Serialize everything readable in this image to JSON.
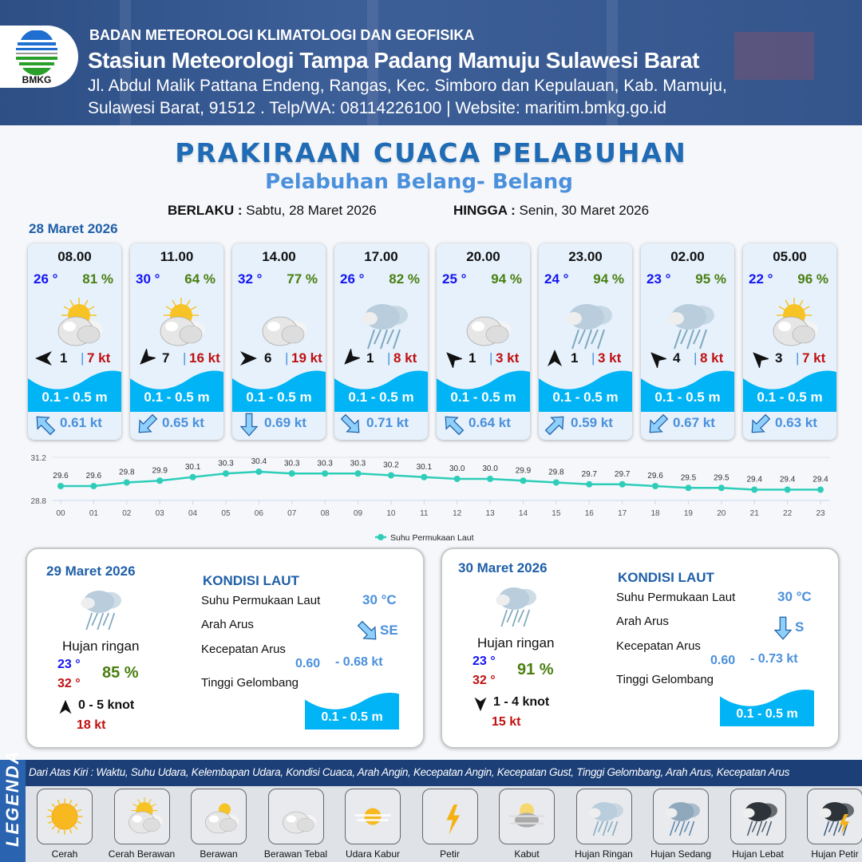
{
  "header": {
    "logo_text": "BMKG",
    "agency": "BADAN METEOROLOGI KLIMATOLOGI DAN GEOFISIKA",
    "station": "Stasiun Meteorologi Tampa Padang Mamuju Sulawesi Barat",
    "address_line1": "Jl. Abdul Malik Pattana Endeng, Rangas, Kec. Simboro dan Kepulauan, Kab. Mamuju,",
    "address_line2": "Sulawesi Barat, 91512 . Telp/WA: 08114226100 | Website: maritim.bmkg.go.id"
  },
  "title": "PRAKIRAAN CUACA PELABUHAN",
  "subtitle": "Pelabuhan Belang- Belang",
  "validity": {
    "from_label": "BERLAKU :",
    "from": "Sabtu, 28 Maret 2026",
    "to_label": "HINGGA :",
    "to": "Senin, 30 Maret 2026"
  },
  "day1_label": "28 Maret 2026",
  "colors": {
    "temp": "#1515f0",
    "humidity": "#4a7f10",
    "gust": "#c01010",
    "wave": "#00b4f5",
    "current": "#4a90dc",
    "sst_line": "#2ecdb9"
  },
  "forecast": [
    {
      "time": "08.00",
      "temp": "26 °",
      "humidity": "81 %",
      "weather": "cerah-berawan",
      "wind_dir": "W",
      "wind_speed": "1",
      "gust": "7 kt",
      "wave": "0.1 - 0.5 m",
      "current_dir": "NW",
      "current_speed": "0.61 kt"
    },
    {
      "time": "11.00",
      "temp": "30 °",
      "humidity": "64 %",
      "weather": "cerah-berawan",
      "wind_dir": "SW",
      "wind_speed": "7",
      "gust": "16 kt",
      "wave": "0.1 - 0.5 m",
      "current_dir": "SW",
      "current_speed": "0.65 kt"
    },
    {
      "time": "14.00",
      "temp": "32 °",
      "humidity": "77 %",
      "weather": "berawan-tebal",
      "wind_dir": "E",
      "wind_speed": "6",
      "gust": "19 kt",
      "wave": "0.1 - 0.5 m",
      "current_dir": "S",
      "current_speed": "0.69 kt"
    },
    {
      "time": "17.00",
      "temp": "26 °",
      "humidity": "82 %",
      "weather": "hujan-ringan",
      "wind_dir": "SW",
      "wind_speed": "1",
      "gust": "8 kt",
      "wave": "0.1 - 0.5 m",
      "current_dir": "SE",
      "current_speed": "0.71 kt"
    },
    {
      "time": "20.00",
      "temp": "25 °",
      "humidity": "94 %",
      "weather": "berawan-tebal",
      "wind_dir": "NW",
      "wind_speed": "1",
      "gust": "3 kt",
      "wave": "0.1 - 0.5 m",
      "current_dir": "NW",
      "current_speed": "0.64 kt"
    },
    {
      "time": "23.00",
      "temp": "24 °",
      "humidity": "94 %",
      "weather": "hujan-ringan",
      "wind_dir": "N",
      "wind_speed": "1",
      "gust": "3 kt",
      "wave": "0.1 - 0.5 m",
      "current_dir": "NE",
      "current_speed": "0.59 kt"
    },
    {
      "time": "02.00",
      "temp": "23 °",
      "humidity": "95 %",
      "weather": "hujan-ringan",
      "wind_dir": "NW",
      "wind_speed": "4",
      "gust": "8 kt",
      "wave": "0.1 - 0.5 m",
      "current_dir": "SW",
      "current_speed": "0.67 kt"
    },
    {
      "time": "05.00",
      "temp": "22 °",
      "humidity": "96 %",
      "weather": "cerah-berawan",
      "wind_dir": "NW",
      "wind_speed": "3",
      "gust": "7 kt",
      "wave": "0.1 - 0.5 m",
      "current_dir": "SW",
      "current_speed": "0.63 kt"
    }
  ],
  "chart_data": {
    "type": "line",
    "x": [
      "00",
      "01",
      "02",
      "03",
      "04",
      "05",
      "06",
      "07",
      "08",
      "09",
      "10",
      "11",
      "12",
      "13",
      "14",
      "15",
      "16",
      "17",
      "18",
      "19",
      "20",
      "21",
      "22",
      "23"
    ],
    "series": [
      {
        "name": "Suhu Permukaan Laut",
        "values": [
          29.6,
          29.6,
          29.8,
          29.9,
          30.1,
          30.3,
          30.4,
          30.3,
          30.3,
          30.3,
          30.2,
          30.1,
          30.0,
          30.0,
          29.9,
          29.8,
          29.7,
          29.7,
          29.6,
          29.5,
          29.5,
          29.4,
          29.4,
          29.4
        ],
        "labels": [
          "29.6",
          "29.6",
          "29.8",
          "29.9",
          "30.1",
          "30.3",
          "30.4",
          "30.3",
          "30.3",
          "30.3",
          "30.2",
          "30.1",
          "30.0",
          "30.0",
          "29.9",
          "29.8",
          "29.7",
          "29.7",
          "29.6",
          "29.5",
          "29.5",
          "29.4",
          "29.4",
          "29.4"
        ]
      }
    ],
    "yticks": [
      "31.2",
      "28.8"
    ],
    "ylim": [
      28.8,
      31.2
    ],
    "legend": "bottom",
    "grid": true
  },
  "days": [
    {
      "date": "29 Maret 2026",
      "weather": "hujan-ringan",
      "condition": "Hujan ringan",
      "temp_min": "23 °",
      "temp_max": "32 °",
      "humidity": "85 %",
      "wind_dir": "N",
      "wind_range": "0 - 5 knot",
      "gust": "18 kt",
      "sea": {
        "heading": "KONDISI LAUT",
        "sst_label": "Suhu Permukaan Laut",
        "sst": "30 °C",
        "current_dir_label": "Arah Arus",
        "current_dir": "SE",
        "current_speed_label": "Kecepatan Arus",
        "current_min": "0.60",
        "current_max": "- 0.68 kt",
        "wave_label": "Tinggi Gelombang",
        "wave": "0.1 - 0.5 m"
      }
    },
    {
      "date": "30 Maret 2026",
      "weather": "hujan-ringan",
      "condition": "Hujan ringan",
      "temp_min": "23 °",
      "temp_max": "32 °",
      "humidity": "91 %",
      "wind_dir": "S",
      "wind_range": "1 - 4 knot",
      "gust": "15 kt",
      "sea": {
        "heading": "KONDISI LAUT",
        "sst_label": "Suhu Permukaan Laut",
        "sst": "30 °C",
        "current_dir_label": "Arah Arus",
        "current_dir": "S",
        "current_speed_label": "Kecepatan Arus",
        "current_min": "0.60",
        "current_max": "- 0.73 kt",
        "wave_label": "Tinggi Gelombang",
        "wave": "0.1 - 0.5 m"
      }
    }
  ],
  "legend": {
    "title": "LEGENDA",
    "description": "Dari Atas Kiri : Waktu, Suhu Udara, Kelembapan Udara, Kondisi Cuaca, Arah Angin, Kecepatan Angin, Kecepatan Gust, Tinggi Gelombang, Arah Arus, Kecepatan Arus",
    "items": [
      {
        "label": "Cerah",
        "icon": "cerah"
      },
      {
        "label": "Cerah Berawan",
        "icon": "cerah-berawan"
      },
      {
        "label": "Berawan",
        "icon": "berawan"
      },
      {
        "label": "Berawan Tebal",
        "icon": "berawan-tebal"
      },
      {
        "label": "Udara Kabur",
        "icon": "udara-kabur"
      },
      {
        "label": "Petir",
        "icon": "petir"
      },
      {
        "label": "Kabut",
        "icon": "kabut"
      },
      {
        "label": "Hujan Ringan",
        "icon": "hujan-ringan"
      },
      {
        "label": "Hujan Sedang",
        "icon": "hujan-sedang"
      },
      {
        "label": "Hujan Lebat",
        "icon": "hujan-lebat"
      },
      {
        "label": "Hujan Petir",
        "icon": "hujan-petir"
      }
    ]
  }
}
